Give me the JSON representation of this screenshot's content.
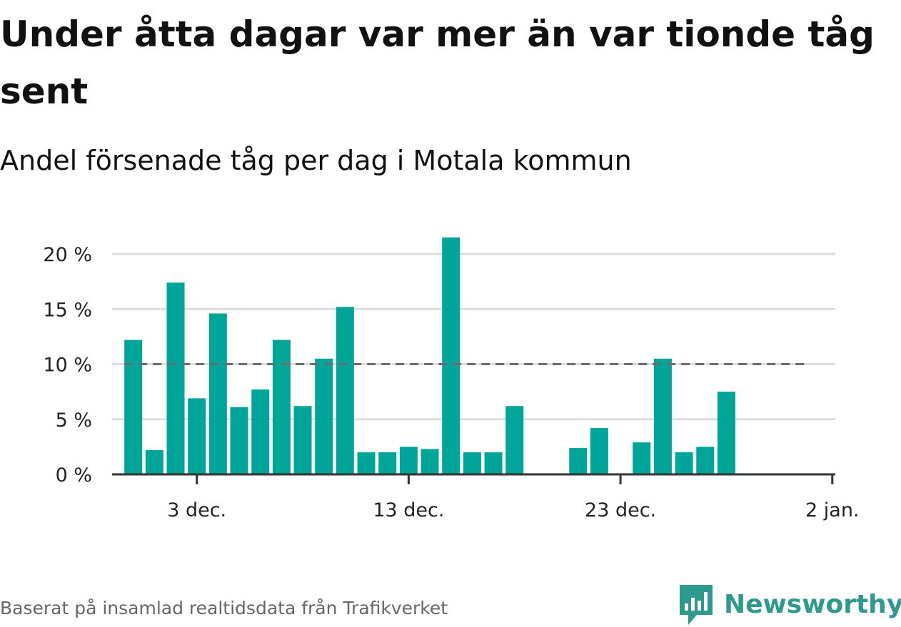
{
  "title": "Under åtta dagar var mer än var tionde tåg sent",
  "subtitle": "Andel försenade tåg per dag i Motala kommun",
  "source": "Baserat på insamlad realtidsdata från Trafikverket",
  "brand": {
    "name": "Newsworthy",
    "icon": "newsworthy-logo-icon"
  },
  "colors": {
    "bar": "#00a59a",
    "reference_line": "#6b6b6b",
    "grid": "#dddddd",
    "axis": "#333333",
    "brand": "#2e9a8e"
  },
  "chart_data": {
    "type": "bar",
    "x": [
      "2023-11-30",
      "2023-12-01",
      "2023-12-02",
      "2023-12-03",
      "2023-12-04",
      "2023-12-05",
      "2023-12-06",
      "2023-12-07",
      "2023-12-08",
      "2023-12-09",
      "2023-12-10",
      "2023-12-11",
      "2023-12-12",
      "2023-12-13",
      "2023-12-14",
      "2023-12-15",
      "2023-12-16",
      "2023-12-17",
      "2023-12-18",
      "2023-12-19",
      "2023-12-20",
      "2023-12-21",
      "2023-12-22",
      "2023-12-23",
      "2023-12-24",
      "2023-12-25",
      "2023-12-26",
      "2023-12-27",
      "2023-12-28",
      "2023-12-29"
    ],
    "values": [
      12.2,
      2.2,
      17.4,
      6.9,
      14.6,
      6.1,
      7.7,
      12.2,
      6.2,
      10.5,
      15.2,
      2.0,
      2.0,
      2.5,
      2.3,
      21.5,
      2.0,
      2.0,
      6.2,
      null,
      null,
      2.4,
      4.2,
      null,
      2.9,
      10.5,
      2.0,
      2.5,
      7.5,
      null
    ],
    "reference_line": {
      "value": 10,
      "from": "2023-11-30",
      "to": "2024-01-01",
      "style": "dashed"
    },
    "y_ticks": [
      0,
      5,
      10,
      15,
      20
    ],
    "y_tick_labels": [
      "0 %",
      "5 %",
      "10 %",
      "15 %",
      "20 %"
    ],
    "x_ticks": [
      {
        "date": "2023-12-03",
        "label": "3 dec."
      },
      {
        "date": "2023-12-13",
        "label": "13 dec."
      },
      {
        "date": "2023-12-23",
        "label": "23 dec."
      },
      {
        "date": "2024-01-02",
        "label": "2 jan."
      }
    ],
    "ylim": [
      0,
      22
    ],
    "xlim": [
      "2023-11-29",
      "2024-01-02"
    ],
    "grid": "horizontal",
    "legend": "none",
    "xlabel": "",
    "ylabel": ""
  }
}
